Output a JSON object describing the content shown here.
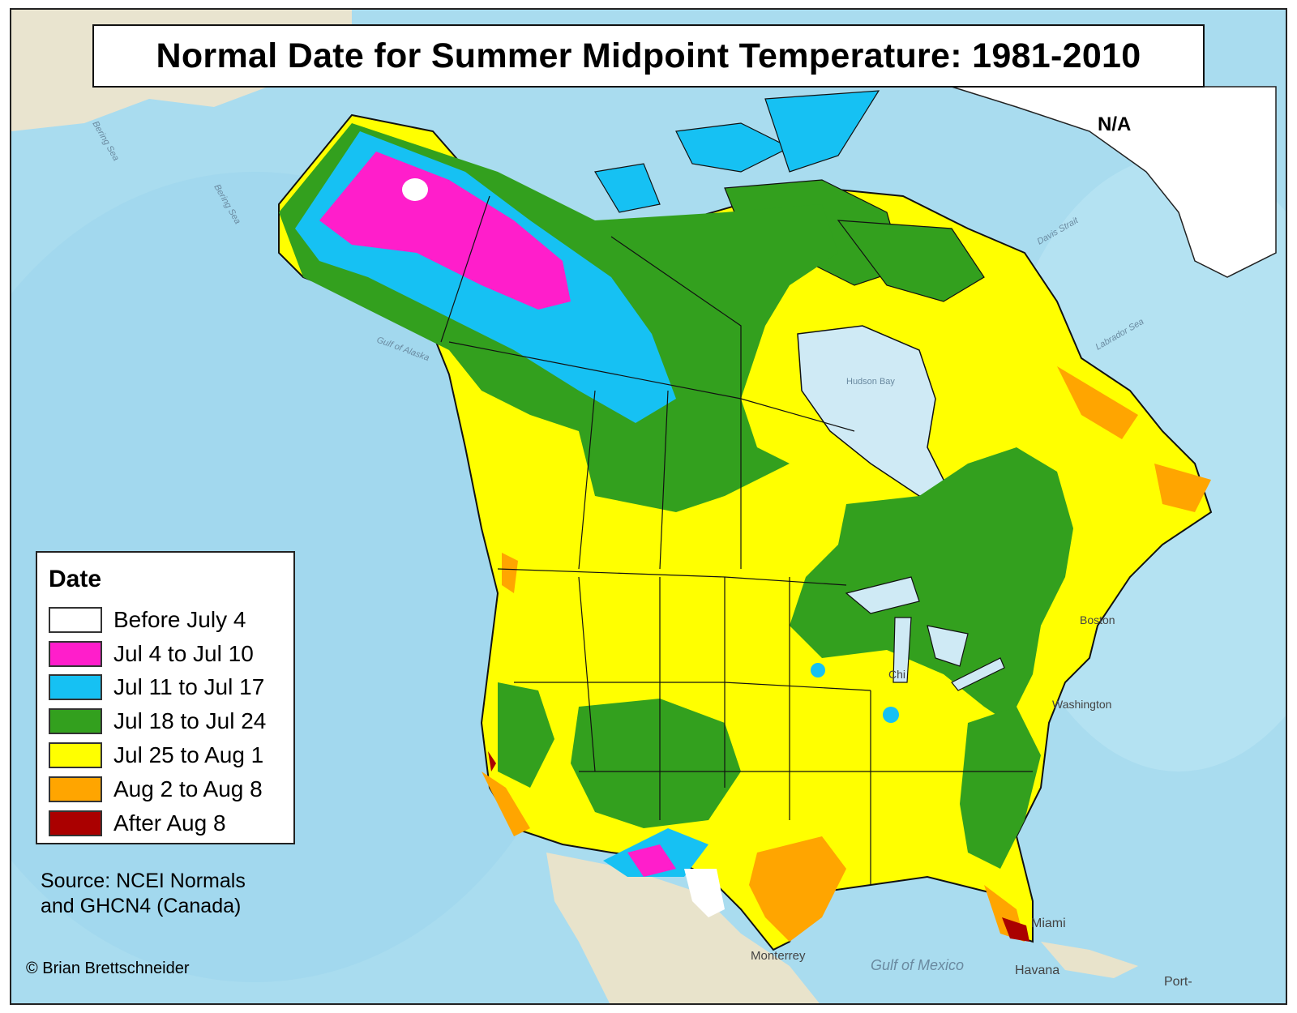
{
  "title": "Normal Date for Summer Midpoint Temperature: 1981-2010",
  "na_label": "N/A",
  "legend": {
    "title": "Date",
    "items": [
      {
        "label": "Before July 4",
        "color": "#ffffff"
      },
      {
        "label": "Jul 4 to Jul 10",
        "color": "#ff1ecb"
      },
      {
        "label": "Jul 11 to Jul 17",
        "color": "#16c1f3"
      },
      {
        "label": "Jul 18 to Jul 24",
        "color": "#33a01e"
      },
      {
        "label": "Jul 25 to Aug 1",
        "color": "#ffff00"
      },
      {
        "label": "Aug 2 to Aug 8",
        "color": "#ffa500"
      },
      {
        "label": "After Aug 8",
        "color": "#aa0000"
      }
    ]
  },
  "source": [
    "Source: NCEI Normals",
    "and GHCN4 (Canada)"
  ],
  "credit": "© Brian Brettschneider",
  "places": [
    "Boston",
    "Chi",
    "Washington",
    "Miami",
    "Havana",
    "Monterrey",
    "Port-"
  ],
  "water_labels": [
    "Bering Sea",
    "Gulf of Alaska",
    "Hudson Bay",
    "Davis Strait",
    "Labrador Sea",
    "Gulf of Mexico"
  ],
  "colors": {
    "ocean": "#a9dcef",
    "land_base": "#e9e4cf",
    "greenland": "#ffffff",
    "border": "#111111"
  }
}
